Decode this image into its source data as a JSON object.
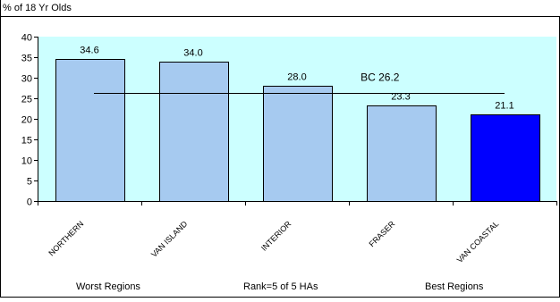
{
  "chart_data": {
    "type": "bar",
    "title": "",
    "ylabel": "% of 18 Yr Olds",
    "xlabel": "",
    "categories": [
      "NORTHERN",
      "VAN ISLAND",
      "INTERIOR",
      "FRASER",
      "VAN COASTAL"
    ],
    "values": [
      34.6,
      34.0,
      28.0,
      23.3,
      21.1
    ],
    "data_labels": [
      "34.6",
      "34.0",
      "28.0",
      "23.3",
      "21.1"
    ],
    "bar_colors": [
      "#a6caf0",
      "#a6caf0",
      "#a6caf0",
      "#a6caf0",
      "#0000ff"
    ],
    "plot_background": "#ccffff",
    "ylim": [
      0,
      40
    ],
    "yticks": [
      0,
      5,
      10,
      15,
      20,
      25,
      30,
      35,
      40
    ],
    "reference_line": {
      "label": "BC 26.2",
      "value": 26.2
    },
    "footer": {
      "left": "Worst Regions",
      "center": "Rank=5 of 5 HAs",
      "right": "Best Regions"
    }
  }
}
